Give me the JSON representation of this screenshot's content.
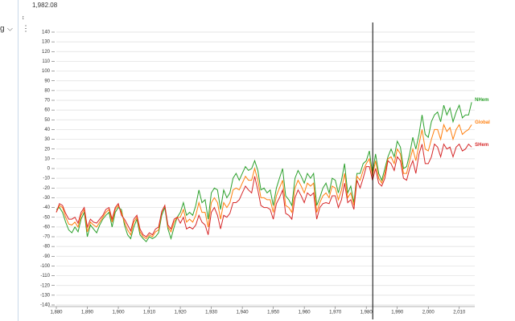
{
  "chart_data": {
    "type": "line",
    "cursor": {
      "value": 1982.08,
      "label": "1,982.08"
    },
    "sidebar_label": "g",
    "x": [
      1880,
      1881,
      1882,
      1883,
      1884,
      1885,
      1886,
      1887,
      1888,
      1889,
      1890,
      1891,
      1892,
      1893,
      1894,
      1895,
      1896,
      1897,
      1898,
      1899,
      1900,
      1901,
      1902,
      1903,
      1904,
      1905,
      1906,
      1907,
      1908,
      1909,
      1910,
      1911,
      1912,
      1913,
      1914,
      1915,
      1916,
      1917,
      1918,
      1919,
      1920,
      1921,
      1922,
      1923,
      1924,
      1925,
      1926,
      1927,
      1928,
      1929,
      1930,
      1931,
      1932,
      1933,
      1934,
      1935,
      1936,
      1937,
      1938,
      1939,
      1940,
      1941,
      1942,
      1943,
      1944,
      1945,
      1946,
      1947,
      1948,
      1949,
      1950,
      1951,
      1952,
      1953,
      1954,
      1955,
      1956,
      1957,
      1958,
      1959,
      1960,
      1961,
      1962,
      1963,
      1964,
      1965,
      1966,
      1967,
      1968,
      1969,
      1970,
      1971,
      1972,
      1973,
      1974,
      1975,
      1976,
      1977,
      1978,
      1979,
      1980,
      1981,
      1982,
      1983,
      1984,
      1985,
      1986,
      1987,
      1988,
      1989,
      1990,
      1991,
      1992,
      1993,
      1994,
      1995,
      1996,
      1997,
      1998,
      1999,
      2000,
      2001,
      2002,
      2003,
      2004,
      2005,
      2006,
      2007,
      2008,
      2009,
      2010,
      2011,
      2012,
      2013,
      2014
    ],
    "series": [
      {
        "name": "NHem",
        "color": "#2ca02c",
        "values": [
          -42,
          -40,
          -45,
          -55,
          -63,
          -66,
          -60,
          -65,
          -52,
          -45,
          -70,
          -58,
          -62,
          -66,
          -58,
          -52,
          -48,
          -45,
          -60,
          -45,
          -40,
          -42,
          -58,
          -68,
          -72,
          -60,
          -52,
          -68,
          -72,
          -75,
          -70,
          -72,
          -70,
          -66,
          -48,
          -40,
          -62,
          -72,
          -60,
          -50,
          -45,
          -35,
          -48,
          -45,
          -48,
          -38,
          -22,
          -35,
          -32,
          -52,
          -25,
          -20,
          -22,
          -42,
          -22,
          -30,
          -25,
          -10,
          -5,
          -12,
          -5,
          2,
          -2,
          0,
          8,
          -2,
          -22,
          -20,
          -25,
          -22,
          -38,
          -20,
          -10,
          0,
          -28,
          -32,
          -38,
          -10,
          -2,
          -8,
          -15,
          -5,
          -10,
          -5,
          -38,
          -30,
          -20,
          -15,
          -25,
          -10,
          -12,
          -25,
          -12,
          5,
          -25,
          -18,
          -35,
          -5,
          -5,
          5,
          8,
          18,
          -5,
          15,
          -5,
          -12,
          0,
          12,
          20,
          12,
          28,
          22,
          0,
          2,
          15,
          32,
          20,
          35,
          55,
          35,
          32,
          48,
          55,
          58,
          48,
          65,
          55,
          62,
          48,
          58,
          65,
          52,
          55,
          55,
          68
        ]
      },
      {
        "name": "Global",
        "color": "#ff7f0e",
        "values": [
          -45,
          -38,
          -40,
          -50,
          -57,
          -58,
          -55,
          -60,
          -48,
          -42,
          -65,
          -55,
          -58,
          -60,
          -55,
          -50,
          -45,
          -42,
          -55,
          -42,
          -38,
          -45,
          -55,
          -63,
          -68,
          -55,
          -50,
          -65,
          -70,
          -72,
          -68,
          -70,
          -65,
          -63,
          -45,
          -38,
          -60,
          -65,
          -55,
          -50,
          -50,
          -42,
          -55,
          -52,
          -55,
          -48,
          -35,
          -45,
          -45,
          -60,
          -35,
          -30,
          -35,
          -52,
          -35,
          -40,
          -35,
          -22,
          -20,
          -22,
          -15,
          -8,
          -12,
          -12,
          0,
          -12,
          -30,
          -30,
          -32,
          -32,
          -45,
          -28,
          -20,
          -12,
          -38,
          -40,
          -45,
          -20,
          -12,
          -18,
          -25,
          -15,
          -18,
          -15,
          -45,
          -35,
          -28,
          -25,
          -30,
          -18,
          -20,
          -32,
          -22,
          -5,
          -30,
          -25,
          -38,
          -8,
          -12,
          -2,
          5,
          10,
          -8,
          8,
          -10,
          -15,
          -5,
          10,
          12,
          5,
          20,
          15,
          -5,
          -5,
          8,
          20,
          8,
          25,
          40,
          20,
          18,
          30,
          40,
          40,
          30,
          45,
          38,
          42,
          30,
          40,
          45,
          35,
          38,
          40,
          45
        ]
      },
      {
        "name": "SHem",
        "color": "#d62728",
        "values": [
          -45,
          -36,
          -38,
          -46,
          -52,
          -52,
          -50,
          -56,
          -45,
          -40,
          -60,
          -52,
          -55,
          -56,
          -52,
          -48,
          -42,
          -40,
          -52,
          -40,
          -36,
          -48,
          -52,
          -58,
          -64,
          -52,
          -48,
          -62,
          -68,
          -70,
          -66,
          -68,
          -62,
          -60,
          -44,
          -38,
          -58,
          -62,
          -52,
          -50,
          -56,
          -50,
          -62,
          -60,
          -62,
          -58,
          -48,
          -55,
          -58,
          -68,
          -45,
          -40,
          -48,
          -62,
          -48,
          -50,
          -46,
          -35,
          -35,
          -32,
          -25,
          -18,
          -22,
          -25,
          -8,
          -22,
          -38,
          -40,
          -40,
          -42,
          -52,
          -36,
          -30,
          -22,
          -46,
          -48,
          -52,
          -30,
          -22,
          -28,
          -35,
          -25,
          -28,
          -25,
          -52,
          -40,
          -36,
          -35,
          -36,
          -28,
          -28,
          -40,
          -32,
          -15,
          -35,
          -32,
          -42,
          -12,
          -20,
          -10,
          2,
          2,
          -12,
          0,
          -15,
          -18,
          -10,
          8,
          5,
          -2,
          12,
          8,
          -10,
          -12,
          0,
          8,
          -5,
          15,
          25,
          5,
          5,
          12,
          25,
          22,
          12,
          25,
          20,
          22,
          12,
          22,
          25,
          18,
          20,
          25,
          22
        ]
      }
    ],
    "xlim": [
      1880,
      2015
    ],
    "xticks": [
      {
        "value": 1880,
        "label": "1,880"
      },
      {
        "value": 1890,
        "label": "1,890"
      },
      {
        "value": 1900,
        "label": "1,900"
      },
      {
        "value": 1910,
        "label": "1,910"
      },
      {
        "value": 1920,
        "label": "1,920"
      },
      {
        "value": 1930,
        "label": "1,930"
      },
      {
        "value": 1940,
        "label": "1,940"
      },
      {
        "value": 1950,
        "label": "1,950"
      },
      {
        "value": 1960,
        "label": "1,960"
      },
      {
        "value": 1970,
        "label": "1,970"
      },
      {
        "value": 1980,
        "label": "1,980"
      },
      {
        "value": 1990,
        "label": "1,990"
      },
      {
        "value": 2000,
        "label": "2,000"
      },
      {
        "value": 2010,
        "label": "2,010"
      }
    ],
    "ylim": [
      -140,
      140
    ],
    "yticks": [
      -140,
      -130,
      -120,
      -110,
      -100,
      -90,
      -80,
      -70,
      -60,
      -50,
      -40,
      -30,
      -20,
      -10,
      0,
      10,
      20,
      30,
      40,
      50,
      60,
      70,
      80,
      90,
      100,
      110,
      120,
      130,
      140
    ],
    "grid": true
  }
}
